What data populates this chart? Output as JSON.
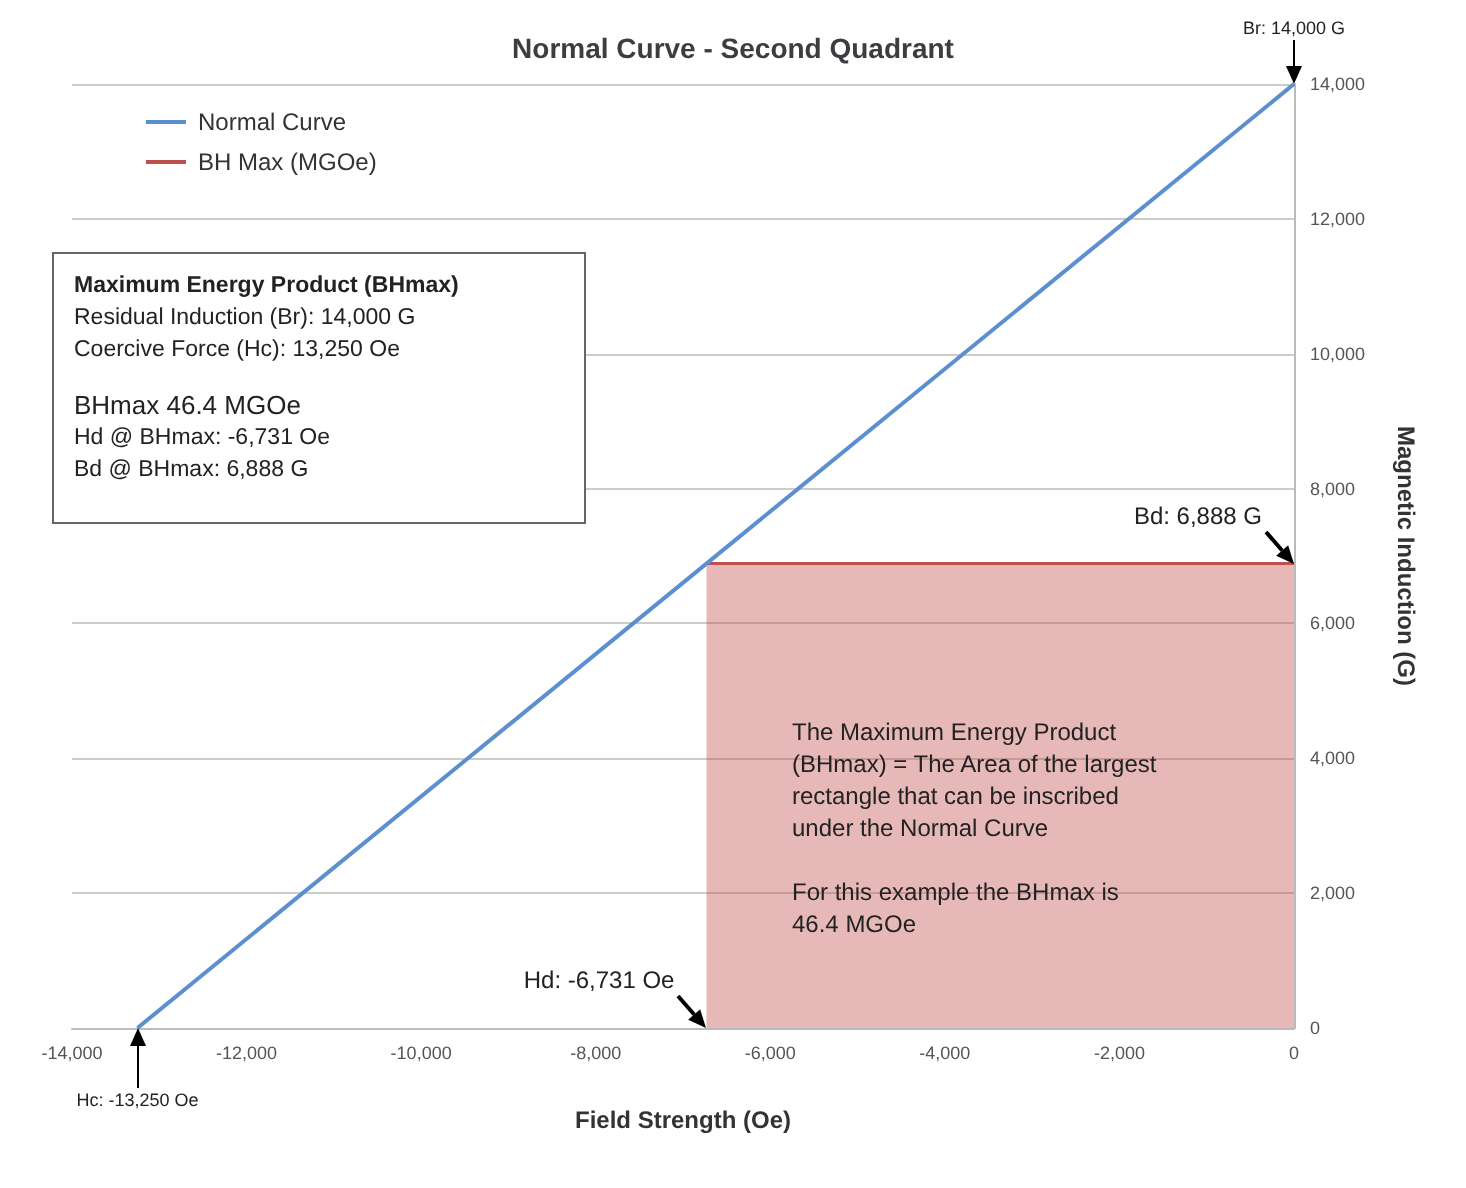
{
  "chart_data": {
    "type": "line",
    "title": "Normal Curve - Second Quadrant",
    "xlabel": "Field Strength (Oe)",
    "ylabel": "Magnetic Induction (G)",
    "series": [
      {
        "name": "Normal Curve",
        "color": "#5b8fd0",
        "x": [
          -13250,
          0
        ],
        "values": [
          0,
          14000
        ]
      },
      {
        "name": "BH Max (MGOe)",
        "type": "area",
        "color": "#c0504d",
        "x": [
          -6731,
          0
        ],
        "values": [
          6888,
          6888
        ]
      }
    ],
    "annotations": [
      "Maximum Energy Product (BHmax)",
      "Residual Induction (Br): 14,000 G",
      "Coercive Force (Hc): 13,250 Oe",
      "BHmax 46.4 MGOe",
      "Hd @ BHmax: -6,731 Oe",
      "Bd @ BHmax: 6,888 G",
      "The Maximum Energy Product (BHmax) = The Area of the largest rectangle that can be inscribed under the Normal Curve",
      "For this example the BHmax is 46.4 MGOe",
      {
        "text": "Br: 14,000 G",
        "x": 0,
        "y": 14000
      },
      {
        "text": "Bd: 6,888 G",
        "x": 0,
        "y": 6888
      },
      {
        "text": "Hd: -6,731 Oe",
        "x": -6731,
        "y": 0
      },
      {
        "text": "Hc: -13,250 Oe",
        "x": -13250,
        "y": 0
      }
    ],
    "xlim": [
      -14000,
      0
    ],
    "xticks": [
      {
        "value": -14000,
        "label": "-14,000"
      },
      {
        "value": -12000,
        "label": "-12,000"
      },
      {
        "value": -10000,
        "label": "-10,000"
      },
      {
        "value": -8000,
        "label": "-8,000"
      },
      {
        "value": -6000,
        "label": "-6,000"
      },
      {
        "value": -4000,
        "label": "-4,000"
      },
      {
        "value": -2000,
        "label": "-2,000"
      },
      0
    ],
    "ylim": [
      0,
      14000
    ],
    "yticks": [
      0,
      {
        "value": 2000,
        "label": "2,000"
      },
      {
        "value": 4000,
        "label": "4,000"
      },
      {
        "value": 6000,
        "label": "6,000"
      },
      {
        "value": 8000,
        "label": "8,000"
      },
      {
        "value": 10000,
        "label": "10,000"
      },
      {
        "value": 12000,
        "label": "12,000"
      },
      {
        "value": 14000,
        "label": "14,000"
      }
    ],
    "grid": "y",
    "legend": "top left",
    "marker": "none"
  }
}
